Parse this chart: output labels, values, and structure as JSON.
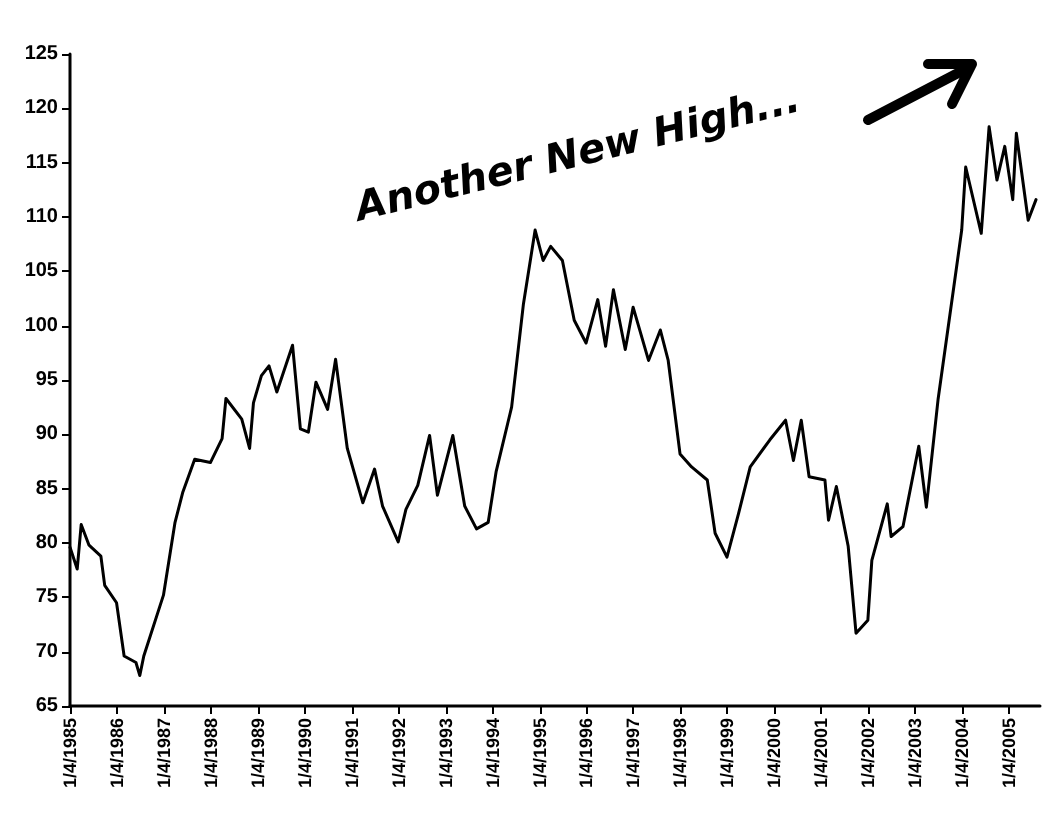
{
  "chart_data": {
    "type": "line",
    "color": "#000000",
    "marker": "none",
    "grid": false,
    "annotations": [
      "Another New High..."
    ],
    "x": [
      "1985-01-04",
      "1985-03",
      "1985-04",
      "1985-06",
      "1985-09",
      "1985-10",
      "1986-01",
      "1986-03",
      "1986-06",
      "1986-07",
      "1986-08",
      "1987-01",
      "1987-04",
      "1987-06",
      "1987-09",
      "1988-01",
      "1988-04",
      "1988-05",
      "1988-09",
      "1988-11",
      "1988-12",
      "1989-02",
      "1989-04",
      "1989-06",
      "1989-10",
      "1989-12",
      "1990-02",
      "1990-04",
      "1990-07",
      "1990-09",
      "1990-12",
      "1991-04",
      "1991-07",
      "1991-09",
      "1992-01",
      "1992-03",
      "1992-06",
      "1992-09",
      "1992-11",
      "1993-03",
      "1993-06",
      "1993-09",
      "1993-12",
      "1994-02",
      "1994-06",
      "1994-09",
      "1994-12",
      "1995-02",
      "1995-04",
      "1995-07",
      "1995-10",
      "1996-01",
      "1996-04",
      "1996-06",
      "1996-08",
      "1996-11",
      "1997-01",
      "1997-05",
      "1997-08",
      "1997-10",
      "1998-01",
      "1998-04",
      "1998-08",
      "1998-10",
      "1999-01",
      "1999-04",
      "1999-07",
      "1999-12",
      "2000-04",
      "2000-06",
      "2000-08",
      "2000-10",
      "2001-02",
      "2001-03",
      "2001-05",
      "2001-08",
      "2001-10",
      "2002-01",
      "2002-02",
      "2002-06",
      "2002-07",
      "2002-10",
      "2003-02",
      "2003-04",
      "2003-07",
      "2003-11",
      "2004-01",
      "2004-02",
      "2004-06",
      "2004-08",
      "2004-10",
      "2004-12",
      "2005-02",
      "2005-03",
      "2005-06",
      "2005-08"
    ],
    "values": [
      79.6,
      77.6,
      81.7,
      79.8,
      78.8,
      76.1,
      74.5,
      69.6,
      69.0,
      67.8,
      69.6,
      75.2,
      81.9,
      84.7,
      87.7,
      87.4,
      89.6,
      93.3,
      91.4,
      88.7,
      92.9,
      95.4,
      96.3,
      93.9,
      98.2,
      90.5,
      90.2,
      94.8,
      92.3,
      96.9,
      88.7,
      83.7,
      86.8,
      83.4,
      80.1,
      83.1,
      85.3,
      89.9,
      84.4,
      89.9,
      83.4,
      81.3,
      81.9,
      86.6,
      92.5,
      102.0,
      108.8,
      106.0,
      107.3,
      106.0,
      100.5,
      98.4,
      102.4,
      98.1,
      103.3,
      97.8,
      101.7,
      96.8,
      99.6,
      96.8,
      88.2,
      87.0,
      85.8,
      80.9,
      78.7,
      82.7,
      87.0,
      89.5,
      91.3,
      87.6,
      91.3,
      86.1,
      85.8,
      82.1,
      85.2,
      79.7,
      71.7,
      72.9,
      78.4,
      83.6,
      80.6,
      81.5,
      88.9,
      83.3,
      93.2,
      103.6,
      108.8,
      114.6,
      108.5,
      118.3,
      113.4,
      116.5,
      111.6,
      117.7,
      109.7,
      111.6
    ],
    "xlim": [
      "1985-01-04",
      "2005-09"
    ],
    "xticks": [
      {
        "value": "1985-01-04",
        "label": "1/4/1985"
      },
      {
        "value": "1986-01-04",
        "label": "1/4/1986"
      },
      {
        "value": "1987-01-04",
        "label": "1/4/1987"
      },
      {
        "value": "1988-01-04",
        "label": "1/4/1988"
      },
      {
        "value": "1989-01-04",
        "label": "1/4/1989"
      },
      {
        "value": "1990-01-04",
        "label": "1/4/1990"
      },
      {
        "value": "1991-01-04",
        "label": "1/4/1991"
      },
      {
        "value": "1992-01-04",
        "label": "1/4/1992"
      },
      {
        "value": "1993-01-04",
        "label": "1/4/1993"
      },
      {
        "value": "1994-01-04",
        "label": "1/4/1994"
      },
      {
        "value": "1995-01-04",
        "label": "1/4/1995"
      },
      {
        "value": "1996-01-04",
        "label": "1/4/1996"
      },
      {
        "value": "1997-01-04",
        "label": "1/4/1997"
      },
      {
        "value": "1998-01-04",
        "label": "1/4/1998"
      },
      {
        "value": "1999-01-04",
        "label": "1/4/1999"
      },
      {
        "value": "2000-01-04",
        "label": "1/4/2000"
      },
      {
        "value": "2001-01-04",
        "label": "1/4/2001"
      },
      {
        "value": "2002-01-04",
        "label": "1/4/2002"
      },
      {
        "value": "2003-01-04",
        "label": "1/4/2003"
      },
      {
        "value": "2004-01-04",
        "label": "1/4/2004"
      },
      {
        "value": "2005-01-04",
        "label": "1/4/2005"
      }
    ],
    "ylim": [
      65,
      125
    ],
    "yticks": [
      65,
      70,
      75,
      80,
      85,
      90,
      95,
      100,
      105,
      110,
      115,
      120,
      125
    ]
  }
}
